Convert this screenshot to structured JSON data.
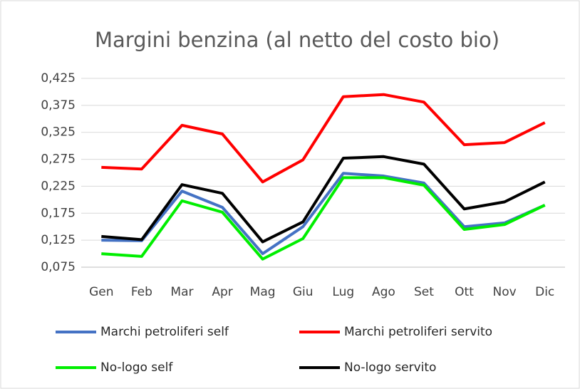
{
  "chart_data": {
    "type": "line",
    "title": "Margini benzina (al netto del costo bio)",
    "categories": [
      "Gen",
      "Feb",
      "Mar",
      "Apr",
      "Mag",
      "Giu",
      "Lug",
      "Ago",
      "Set",
      "Ott",
      "Nov",
      "Dic"
    ],
    "series": [
      {
        "name": "Marchi petroliferi self",
        "color": "#4472c4",
        "values": [
          0.125,
          0.124,
          0.216,
          0.186,
          0.1,
          0.15,
          0.249,
          0.244,
          0.231,
          0.15,
          0.157,
          0.19
        ]
      },
      {
        "name": "Marchi petroliferi servito",
        "color": "#ff0000",
        "values": [
          0.26,
          0.257,
          0.338,
          0.322,
          0.233,
          0.274,
          0.391,
          0.395,
          0.381,
          0.302,
          0.306,
          0.343
        ]
      },
      {
        "name": "No-logo self",
        "color": "#00ee00",
        "values": [
          0.1,
          0.095,
          0.198,
          0.177,
          0.09,
          0.128,
          0.241,
          0.241,
          0.227,
          0.145,
          0.154,
          0.19
        ]
      },
      {
        "name": "No-logo servito",
        "color": "#000000",
        "values": [
          0.132,
          0.126,
          0.228,
          0.212,
          0.122,
          0.159,
          0.277,
          0.28,
          0.266,
          0.183,
          0.196,
          0.233
        ]
      }
    ],
    "ylim": [
      0.075,
      0.425
    ],
    "yticks": [
      {
        "value": 0.075,
        "label": "0,075"
      },
      {
        "value": 0.125,
        "label": "0,125"
      },
      {
        "value": 0.175,
        "label": "0,175"
      },
      {
        "value": 0.225,
        "label": "0,225"
      },
      {
        "value": 0.275,
        "label": "0,275"
      },
      {
        "value": 0.325,
        "label": "0,325"
      },
      {
        "value": 0.375,
        "label": "0,375"
      },
      {
        "value": 0.425,
        "label": "0,425"
      }
    ],
    "grid": true
  }
}
